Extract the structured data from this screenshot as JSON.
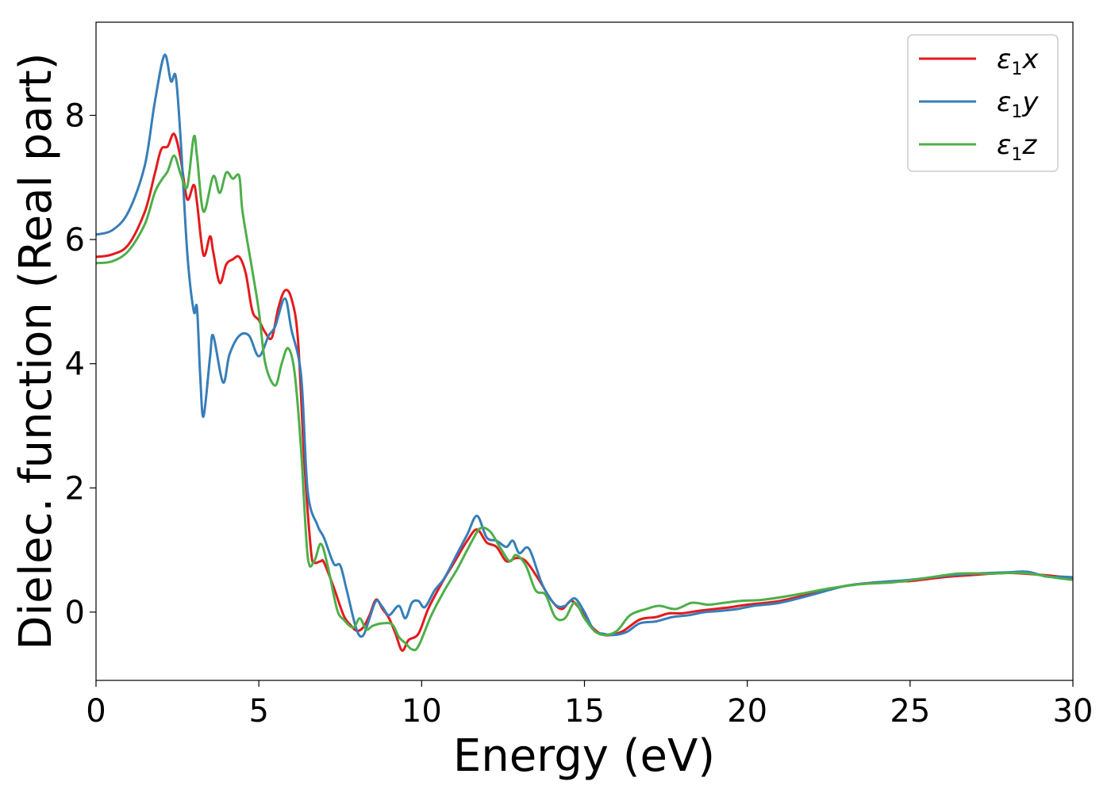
{
  "chart_data": {
    "type": "line",
    "xlabel": "Energy (eV)",
    "ylabel": "Dielec. function (Real part)",
    "xlim": [
      0,
      30
    ],
    "ylim": [
      -1.1,
      9.5
    ],
    "xticks": [
      0,
      5,
      10,
      15,
      20,
      25,
      30
    ],
    "yticks": [
      0,
      2,
      4,
      6,
      8
    ],
    "grid": false,
    "legend_position": "top-right",
    "series": [
      {
        "name": "ε₁x",
        "legend": {
          "base": "ε",
          "sub": "1",
          "var": "x"
        },
        "color": "#e41a1c",
        "points": [
          [
            0,
            5.72
          ],
          [
            0.5,
            5.76
          ],
          [
            1,
            5.92
          ],
          [
            1.5,
            6.45
          ],
          [
            1.8,
            7.05
          ],
          [
            2.0,
            7.45
          ],
          [
            2.2,
            7.5
          ],
          [
            2.4,
            7.7
          ],
          [
            2.6,
            7.3
          ],
          [
            2.8,
            6.65
          ],
          [
            3.0,
            6.88
          ],
          [
            3.1,
            6.6
          ],
          [
            3.3,
            5.75
          ],
          [
            3.5,
            6.05
          ],
          [
            3.6,
            5.8
          ],
          [
            3.8,
            5.3
          ],
          [
            4.0,
            5.6
          ],
          [
            4.2,
            5.68
          ],
          [
            4.4,
            5.72
          ],
          [
            4.6,
            5.45
          ],
          [
            4.8,
            4.85
          ],
          [
            5.0,
            4.7
          ],
          [
            5.2,
            4.5
          ],
          [
            5.4,
            4.42
          ],
          [
            5.6,
            4.9
          ],
          [
            5.8,
            5.18
          ],
          [
            6.0,
            5.05
          ],
          [
            6.2,
            4.4
          ],
          [
            6.4,
            2.4
          ],
          [
            6.6,
            1.0
          ],
          [
            6.7,
            0.8
          ],
          [
            6.9,
            0.82
          ],
          [
            7.0,
            0.8
          ],
          [
            7.3,
            0.4
          ],
          [
            7.6,
            -0.05
          ],
          [
            7.8,
            -0.2
          ],
          [
            8.0,
            -0.3
          ],
          [
            8.2,
            -0.25
          ],
          [
            8.4,
            -0.05
          ],
          [
            8.6,
            0.2
          ],
          [
            8.8,
            0.05
          ],
          [
            9.0,
            -0.1
          ],
          [
            9.2,
            -0.35
          ],
          [
            9.4,
            -0.62
          ],
          [
            9.6,
            -0.45
          ],
          [
            9.9,
            -0.35
          ],
          [
            10.2,
            0.05
          ],
          [
            10.6,
            0.45
          ],
          [
            11.0,
            0.8
          ],
          [
            11.4,
            1.15
          ],
          [
            11.7,
            1.33
          ],
          [
            12.0,
            1.12
          ],
          [
            12.3,
            1.05
          ],
          [
            12.6,
            0.82
          ],
          [
            12.9,
            0.87
          ],
          [
            13.2,
            0.82
          ],
          [
            13.6,
            0.52
          ],
          [
            14.0,
            0.18
          ],
          [
            14.3,
            0.05
          ],
          [
            14.6,
            0.18
          ],
          [
            14.9,
            0.02
          ],
          [
            15.2,
            -0.22
          ],
          [
            15.5,
            -0.35
          ],
          [
            15.8,
            -0.37
          ],
          [
            16.2,
            -0.3
          ],
          [
            16.7,
            -0.12
          ],
          [
            17.2,
            -0.08
          ],
          [
            17.6,
            -0.02
          ],
          [
            18.0,
            -0.02
          ],
          [
            18.5,
            0.02
          ],
          [
            19.0,
            0.05
          ],
          [
            19.5,
            0.08
          ],
          [
            20.0,
            0.12
          ],
          [
            21.0,
            0.18
          ],
          [
            22.0,
            0.3
          ],
          [
            23.0,
            0.42
          ],
          [
            24.0,
            0.48
          ],
          [
            25.0,
            0.5
          ],
          [
            26.0,
            0.56
          ],
          [
            27.0,
            0.6
          ],
          [
            28.0,
            0.63
          ],
          [
            29.0,
            0.6
          ],
          [
            30.0,
            0.55
          ]
        ]
      },
      {
        "name": "ε₁y",
        "legend": {
          "base": "ε",
          "sub": "1",
          "var": "y"
        },
        "color": "#377eb8",
        "points": [
          [
            0,
            6.08
          ],
          [
            0.5,
            6.15
          ],
          [
            1,
            6.45
          ],
          [
            1.5,
            7.2
          ],
          [
            1.8,
            8.2
          ],
          [
            2.1,
            8.97
          ],
          [
            2.3,
            8.55
          ],
          [
            2.45,
            8.62
          ],
          [
            2.6,
            7.6
          ],
          [
            2.8,
            5.8
          ],
          [
            3.0,
            4.85
          ],
          [
            3.1,
            4.9
          ],
          [
            3.2,
            3.8
          ],
          [
            3.3,
            3.15
          ],
          [
            3.5,
            4.1
          ],
          [
            3.6,
            4.45
          ],
          [
            3.9,
            3.7
          ],
          [
            4.1,
            4.15
          ],
          [
            4.4,
            4.45
          ],
          [
            4.7,
            4.45
          ],
          [
            5.0,
            4.12
          ],
          [
            5.3,
            4.45
          ],
          [
            5.5,
            4.6
          ],
          [
            5.8,
            5.05
          ],
          [
            6.0,
            4.55
          ],
          [
            6.3,
            3.8
          ],
          [
            6.5,
            1.95
          ],
          [
            6.8,
            1.4
          ],
          [
            7.0,
            1.2
          ],
          [
            7.3,
            0.78
          ],
          [
            7.5,
            0.75
          ],
          [
            7.7,
            0.35
          ],
          [
            8.0,
            -0.28
          ],
          [
            8.2,
            -0.38
          ],
          [
            8.4,
            -0.1
          ],
          [
            8.6,
            0.18
          ],
          [
            8.8,
            0.08
          ],
          [
            9.0,
            -0.05
          ],
          [
            9.3,
            0.1
          ],
          [
            9.5,
            -0.1
          ],
          [
            9.7,
            0.15
          ],
          [
            9.9,
            0.18
          ],
          [
            10.1,
            0.08
          ],
          [
            10.4,
            0.35
          ],
          [
            10.7,
            0.55
          ],
          [
            11.1,
            0.95
          ],
          [
            11.4,
            1.25
          ],
          [
            11.7,
            1.55
          ],
          [
            12.0,
            1.2
          ],
          [
            12.3,
            1.15
          ],
          [
            12.6,
            1.05
          ],
          [
            12.8,
            1.15
          ],
          [
            13.0,
            0.95
          ],
          [
            13.3,
            1.02
          ],
          [
            13.7,
            0.45
          ],
          [
            14.1,
            0.12
          ],
          [
            14.4,
            0.1
          ],
          [
            14.7,
            0.22
          ],
          [
            15.0,
            0.0
          ],
          [
            15.3,
            -0.3
          ],
          [
            15.6,
            -0.35
          ],
          [
            15.9,
            -0.37
          ],
          [
            16.3,
            -0.32
          ],
          [
            16.7,
            -0.18
          ],
          [
            17.2,
            -0.15
          ],
          [
            17.7,
            -0.08
          ],
          [
            18.2,
            -0.05
          ],
          [
            18.7,
            0.0
          ],
          [
            19.2,
            0.02
          ],
          [
            19.7,
            0.05
          ],
          [
            20.2,
            0.1
          ],
          [
            21.0,
            0.15
          ],
          [
            22.0,
            0.28
          ],
          [
            23.0,
            0.42
          ],
          [
            24.0,
            0.48
          ],
          [
            25.0,
            0.52
          ],
          [
            26.0,
            0.58
          ],
          [
            27.0,
            0.62
          ],
          [
            28.0,
            0.64
          ],
          [
            28.6,
            0.65
          ],
          [
            29.2,
            0.57
          ],
          [
            29.7,
            0.57
          ],
          [
            30.0,
            0.56
          ]
        ]
      },
      {
        "name": "ε₁z",
        "legend": {
          "base": "ε",
          "sub": "1",
          "var": "z"
        },
        "color": "#4daf4a",
        "points": [
          [
            0,
            5.62
          ],
          [
            0.5,
            5.65
          ],
          [
            1,
            5.82
          ],
          [
            1.5,
            6.25
          ],
          [
            1.8,
            6.75
          ],
          [
            2.0,
            6.95
          ],
          [
            2.2,
            7.1
          ],
          [
            2.4,
            7.35
          ],
          [
            2.6,
            7.05
          ],
          [
            2.8,
            6.85
          ],
          [
            3.0,
            7.65
          ],
          [
            3.1,
            7.35
          ],
          [
            3.3,
            6.45
          ],
          [
            3.6,
            7.02
          ],
          [
            3.8,
            6.75
          ],
          [
            4.0,
            7.08
          ],
          [
            4.2,
            6.98
          ],
          [
            4.4,
            7.02
          ],
          [
            4.5,
            6.45
          ],
          [
            4.8,
            5.5
          ],
          [
            5.0,
            4.85
          ],
          [
            5.2,
            4.0
          ],
          [
            5.5,
            3.65
          ],
          [
            5.7,
            4.0
          ],
          [
            5.9,
            4.25
          ],
          [
            6.1,
            3.85
          ],
          [
            6.3,
            2.6
          ],
          [
            6.5,
            0.9
          ],
          [
            6.7,
            0.82
          ],
          [
            6.9,
            1.1
          ],
          [
            7.1,
            0.78
          ],
          [
            7.4,
            0.05
          ],
          [
            7.6,
            -0.12
          ],
          [
            7.9,
            -0.25
          ],
          [
            8.1,
            -0.1
          ],
          [
            8.3,
            -0.28
          ],
          [
            8.5,
            -0.22
          ],
          [
            8.8,
            -0.18
          ],
          [
            9.1,
            -0.2
          ],
          [
            9.3,
            -0.4
          ],
          [
            9.5,
            -0.5
          ],
          [
            9.7,
            -0.6
          ],
          [
            9.9,
            -0.55
          ],
          [
            10.3,
            -0.05
          ],
          [
            10.7,
            0.35
          ],
          [
            11.1,
            0.7
          ],
          [
            11.5,
            1.1
          ],
          [
            11.8,
            1.35
          ],
          [
            12.1,
            1.3
          ],
          [
            12.4,
            1.05
          ],
          [
            12.7,
            0.82
          ],
          [
            12.9,
            0.92
          ],
          [
            13.2,
            0.75
          ],
          [
            13.5,
            0.35
          ],
          [
            13.8,
            0.28
          ],
          [
            14.1,
            -0.08
          ],
          [
            14.4,
            -0.1
          ],
          [
            14.7,
            0.15
          ],
          [
            15.0,
            -0.1
          ],
          [
            15.3,
            -0.3
          ],
          [
            15.6,
            -0.37
          ],
          [
            16.0,
            -0.3
          ],
          [
            16.4,
            -0.05
          ],
          [
            16.9,
            0.05
          ],
          [
            17.3,
            0.1
          ],
          [
            17.8,
            0.05
          ],
          [
            18.3,
            0.15
          ],
          [
            18.8,
            0.12
          ],
          [
            19.3,
            0.15
          ],
          [
            19.8,
            0.18
          ],
          [
            20.5,
            0.2
          ],
          [
            21.5,
            0.28
          ],
          [
            22.5,
            0.38
          ],
          [
            23.5,
            0.45
          ],
          [
            24.5,
            0.48
          ],
          [
            25.5,
            0.55
          ],
          [
            26.5,
            0.62
          ],
          [
            27.5,
            0.62
          ],
          [
            28.5,
            0.63
          ],
          [
            29.5,
            0.55
          ],
          [
            30.0,
            0.52
          ]
        ]
      }
    ]
  }
}
